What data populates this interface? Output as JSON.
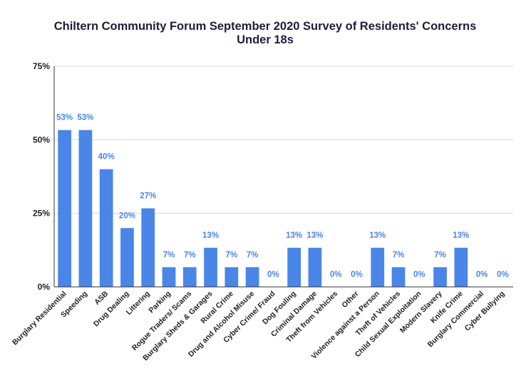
{
  "chart_data": {
    "type": "bar",
    "title": "Chiltern Community Forum September 2020 Survey of Residents' Concerns",
    "subtitle": "Under 18s",
    "categories": [
      "Burglary Residential",
      "Speeding",
      "ASB",
      "Drug Dealing",
      "Littering",
      "Parking",
      "Rogue Traders/ Scams",
      "Burglary Sheds & Garages",
      "Rural Crime",
      "Drug and Alcohol Misuse",
      "Cyber Crime/ Fraud",
      "Dog Fouling",
      "Criminal Damage",
      "Theft from Vehicles",
      "Other",
      "Violence against a Person",
      "Theft of Vehicles",
      "Child Sexual Exploitation",
      "Modern Slavery",
      "Knife Crime",
      "Burglary Commercial",
      "Cyber Bullying"
    ],
    "values": [
      53.3,
      53.3,
      40,
      20,
      26.7,
      6.7,
      6.7,
      13.3,
      6.7,
      6.7,
      0,
      13.3,
      13.3,
      0,
      0,
      13.3,
      6.7,
      0,
      6.7,
      13.3,
      0,
      0
    ],
    "data_labels": [
      "53%",
      "53%",
      "40%",
      "20%",
      "27%",
      "7%",
      "7%",
      "13%",
      "7%",
      "7%",
      "0%",
      "13%",
      "13%",
      "0%",
      "0%",
      "13%",
      "7%",
      "0%",
      "7%",
      "13%",
      "0%",
      "0%"
    ],
    "yticks": [
      0,
      25,
      50,
      75
    ],
    "ytick_labels": [
      "0%",
      "25%",
      "50%",
      "75%"
    ],
    "ylim": [
      0,
      75
    ],
    "xlabel": "",
    "ylabel": "",
    "grid": true,
    "legend": "none",
    "bar_color": "#4a86e8",
    "label_color": "#4a86e8",
    "title_color": "#1d1d3a"
  }
}
